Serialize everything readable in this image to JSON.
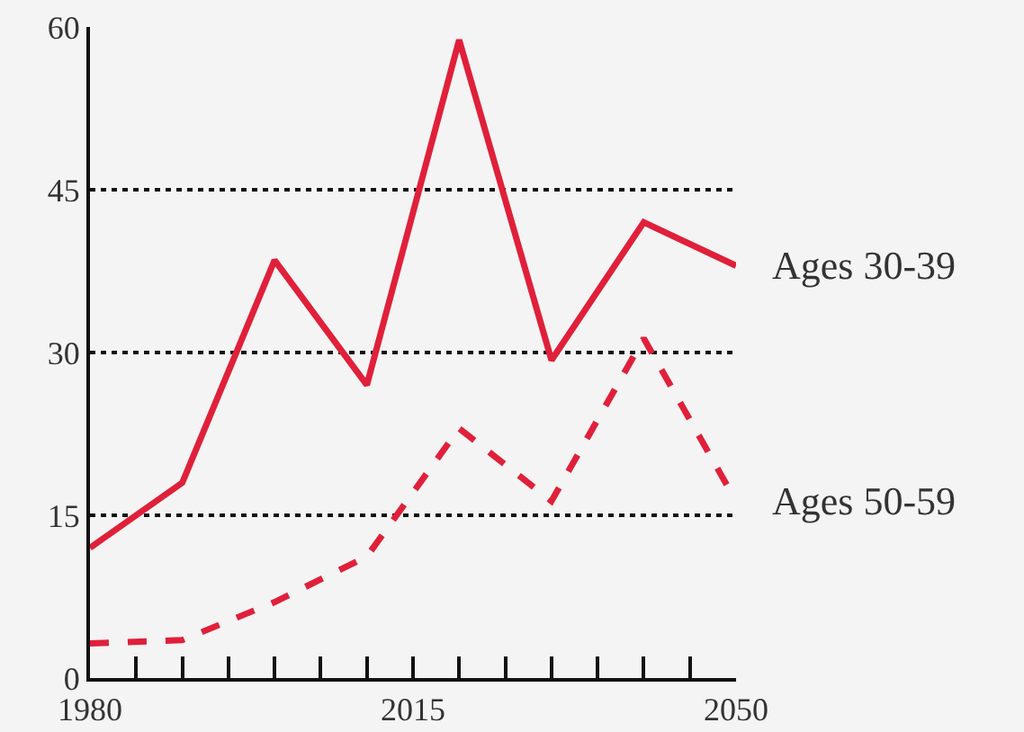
{
  "chart_data": {
    "type": "line",
    "x": [
      1980,
      1990,
      2000,
      2010,
      2020,
      2030,
      2040,
      2050
    ],
    "series": [
      {
        "name": "Ages 30-39",
        "color": "#e0203a",
        "values": [
          12,
          18,
          38.5,
          27,
          58.8,
          29.3,
          42,
          38
        ],
        "line_style": "solid"
      },
      {
        "name": "Ages 50-59",
        "color": "#e0203a",
        "values": [
          3.2,
          3.5,
          7,
          11.2,
          23,
          16.3,
          31.3,
          16.3
        ],
        "line_style": "dashed"
      }
    ],
    "xlim": [
      1980,
      2050
    ],
    "xticks": [
      1980,
      {
        "value": 1985,
        "label": null
      },
      {
        "value": 1990,
        "label": null
      },
      {
        "value": 1995,
        "label": null
      },
      {
        "value": 2000,
        "label": null
      },
      {
        "value": 2005,
        "label": null
      },
      {
        "value": 2010,
        "label": null
      },
      2015,
      {
        "value": 2020,
        "label": null
      },
      {
        "value": 2025,
        "label": null
      },
      {
        "value": 2030,
        "label": null
      },
      {
        "value": 2035,
        "label": null
      },
      {
        "value": 2040,
        "label": null
      },
      {
        "value": 2045,
        "label": null
      },
      2050
    ],
    "ylim": [
      0,
      60
    ],
    "yticks": [
      0,
      15,
      30,
      45,
      60
    ],
    "grid": "y",
    "legend": false,
    "marker": "none"
  }
}
